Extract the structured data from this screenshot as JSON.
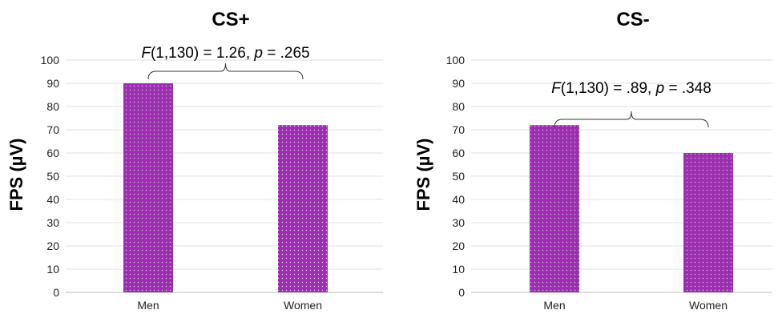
{
  "chart_data": [
    {
      "type": "bar",
      "title": "CS+",
      "ylabel": "FPS (µV)",
      "xlabel": "",
      "categories": [
        "Men",
        "Women"
      ],
      "values": [
        90,
        72
      ],
      "ylim": [
        0,
        100
      ],
      "yticks": [
        0,
        10,
        20,
        30,
        40,
        50,
        60,
        70,
        80,
        90,
        100
      ],
      "grid": true,
      "bar_color": "#9b2fb0",
      "annotation": {
        "f_label": "F",
        "df": "(1,130) = 1.26, ",
        "p_label": "p",
        "p_value": " = .265"
      }
    },
    {
      "type": "bar",
      "title": "CS-",
      "ylabel": "FPS (µV)",
      "xlabel": "",
      "categories": [
        "Men",
        "Women"
      ],
      "values": [
        72,
        60
      ],
      "ylim": [
        0,
        100
      ],
      "yticks": [
        0,
        10,
        20,
        30,
        40,
        50,
        60,
        70,
        80,
        90,
        100
      ],
      "grid": true,
      "bar_color": "#9b2fb0",
      "annotation": {
        "f_label": "F",
        "df": "(1,130) = .89, ",
        "p_label": "p",
        "p_value": " = .348"
      }
    }
  ]
}
